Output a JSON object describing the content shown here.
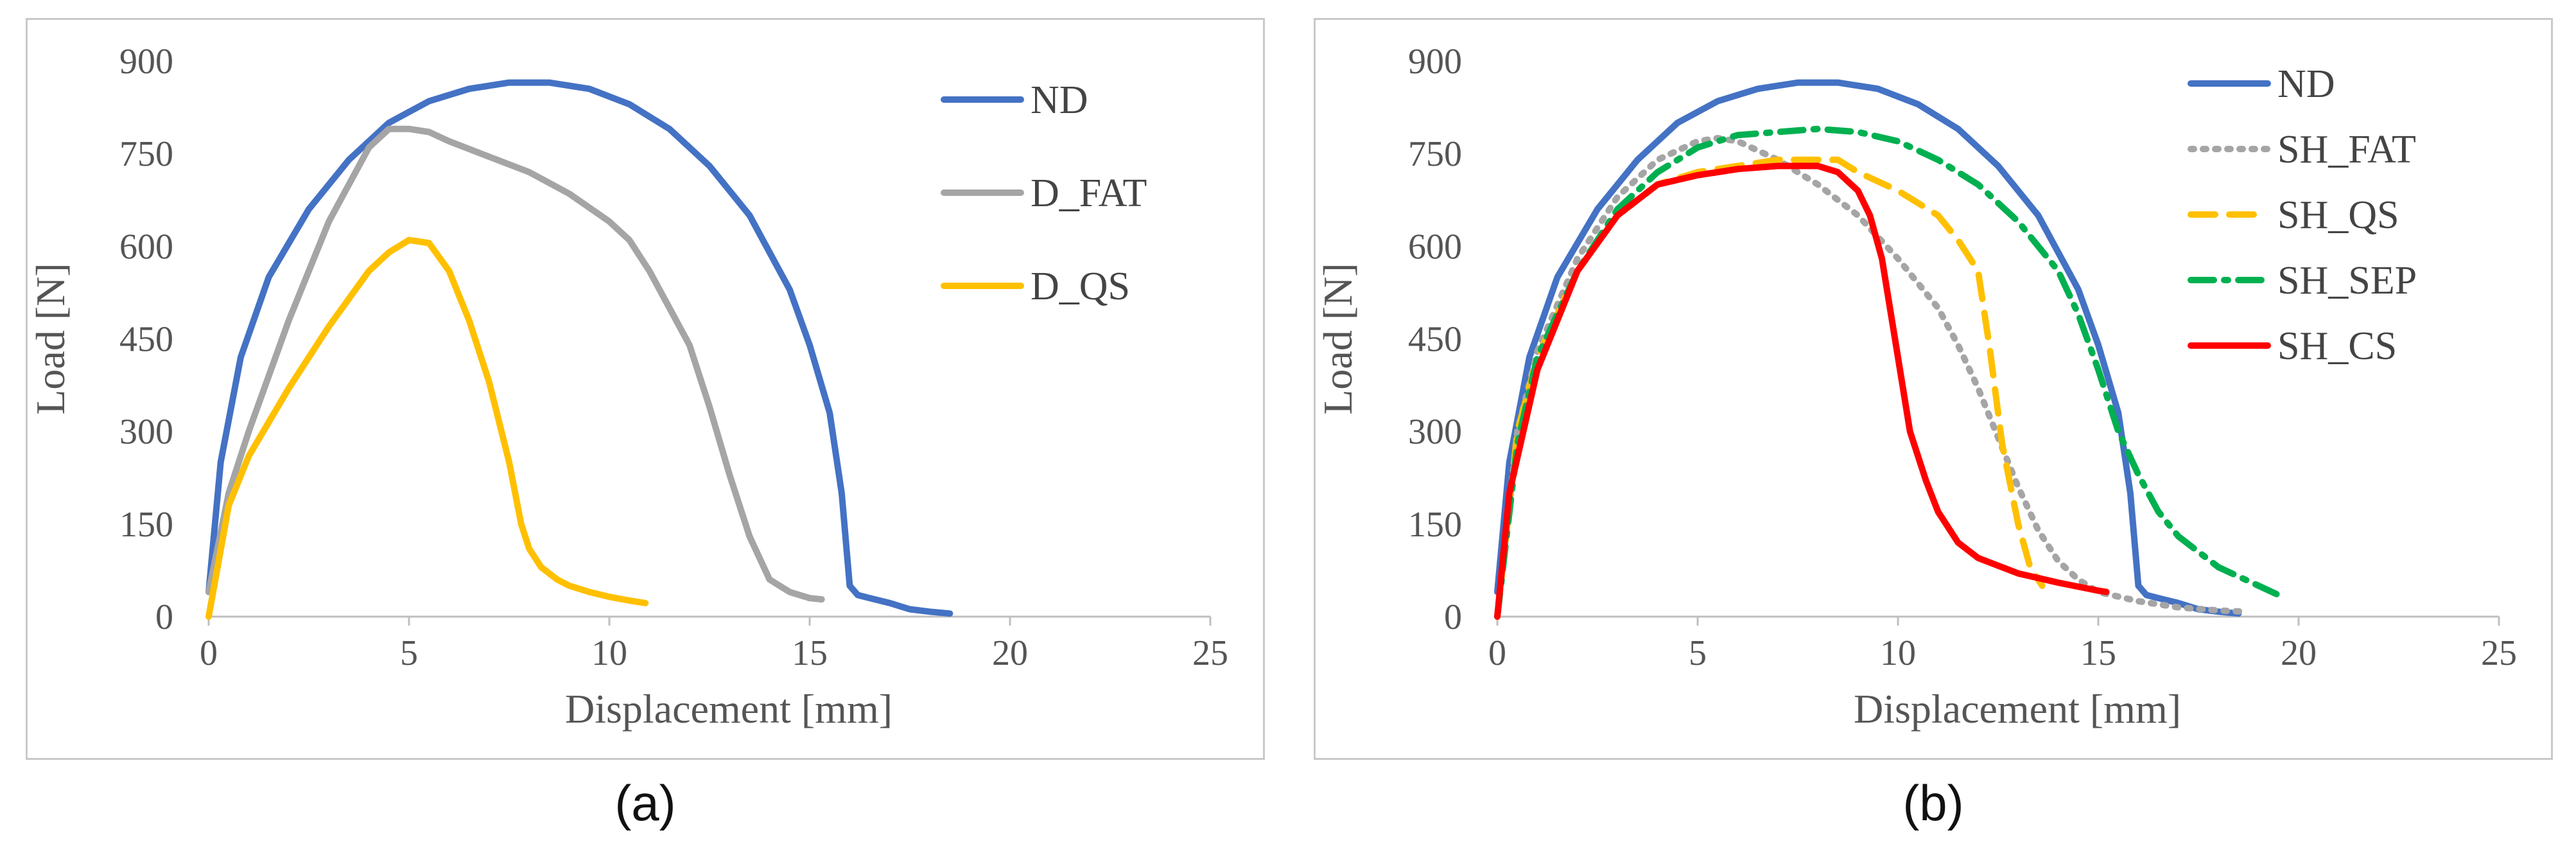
{
  "captions": [
    "(a)",
    "(b)"
  ],
  "colors": {
    "ND": "#4472C4",
    "D_FAT": "#A5A5A5",
    "D_QS": "#FFC000",
    "SH_FAT": "#A5A5A5",
    "SH_QS": "#FFC000",
    "SH_SEP": "#00B050",
    "SH_CS": "#FF0000"
  },
  "chart_data": [
    {
      "type": "line",
      "panel": "(a)",
      "xlabel": "Displacement  [mm]",
      "ylabel": "Load [N]",
      "xlim": [
        0,
        25
      ],
      "ylim": [
        0,
        900
      ],
      "xticks": [
        "0",
        "5",
        "10",
        "15",
        "20",
        "25"
      ],
      "yticks": [
        "0",
        "150",
        "300",
        "450",
        "600",
        "750",
        "900"
      ],
      "legend": [
        "ND",
        "D_FAT",
        "D_QS"
      ],
      "series": [
        {
          "name": "ND",
          "color": "#4472C4",
          "dash": "solid",
          "x": [
            0,
            0.3,
            0.8,
            1.5,
            2.5,
            3.5,
            4.5,
            5.5,
            6.5,
            7.5,
            8.5,
            9.5,
            10.5,
            11.5,
            12.5,
            13.5,
            14.5,
            15.0,
            15.5,
            15.8,
            16.0,
            16.2,
            16.5,
            17.0,
            17.5,
            18.0,
            18.5
          ],
          "y": [
            40,
            250,
            420,
            550,
            660,
            740,
            800,
            835,
            855,
            865,
            865,
            855,
            830,
            790,
            730,
            650,
            530,
            440,
            330,
            200,
            50,
            35,
            30,
            22,
            12,
            8,
            5
          ]
        },
        {
          "name": "D_FAT",
          "color": "#A5A5A5",
          "dash": "solid",
          "x": [
            0,
            0.5,
            1.0,
            2.0,
            3.0,
            4.0,
            4.5,
            5.0,
            5.5,
            6.0,
            7.0,
            8.0,
            9.0,
            10.0,
            10.5,
            11.0,
            11.5,
            12.0,
            12.5,
            13.0,
            13.5,
            14.0,
            14.5,
            15.0,
            15.3
          ],
          "y": [
            40,
            200,
            300,
            480,
            640,
            760,
            790,
            790,
            785,
            770,
            745,
            720,
            685,
            640,
            610,
            560,
            500,
            440,
            340,
            230,
            130,
            60,
            40,
            30,
            28
          ]
        },
        {
          "name": "D_QS",
          "color": "#FFC000",
          "dash": "solid",
          "x": [
            0,
            0.5,
            1.0,
            2.0,
            3.0,
            4.0,
            4.5,
            5.0,
            5.5,
            6.0,
            6.5,
            7.0,
            7.5,
            7.8,
            8.0,
            8.3,
            8.7,
            9.0,
            9.5,
            10.0,
            10.5,
            10.9
          ],
          "y": [
            0,
            180,
            260,
            370,
            470,
            560,
            590,
            610,
            605,
            560,
            480,
            380,
            250,
            150,
            110,
            80,
            60,
            50,
            40,
            32,
            26,
            22
          ]
        }
      ]
    },
    {
      "type": "line",
      "panel": "(b)",
      "xlabel": "Displacement  [mm]",
      "ylabel": "Load [N]",
      "xlim": [
        0,
        25
      ],
      "ylim": [
        0,
        900
      ],
      "xticks": [
        "0",
        "5",
        "10",
        "15",
        "20",
        "25"
      ],
      "yticks": [
        "0",
        "150",
        "300",
        "450",
        "600",
        "750",
        "900"
      ],
      "legend": [
        "ND",
        "SH_FAT",
        "SH_QS",
        "SH_SEP",
        "SH_CS"
      ],
      "series": [
        {
          "name": "ND",
          "color": "#4472C4",
          "dash": "solid",
          "x": [
            0,
            0.3,
            0.8,
            1.5,
            2.5,
            3.5,
            4.5,
            5.5,
            6.5,
            7.5,
            8.5,
            9.5,
            10.5,
            11.5,
            12.5,
            13.5,
            14.5,
            15.0,
            15.5,
            15.8,
            16.0,
            16.2,
            16.5,
            17.0,
            17.5,
            18.0,
            18.5
          ],
          "y": [
            40,
            250,
            420,
            550,
            660,
            740,
            800,
            835,
            855,
            865,
            865,
            855,
            830,
            790,
            730,
            650,
            530,
            440,
            330,
            200,
            50,
            35,
            30,
            22,
            12,
            8,
            5
          ]
        },
        {
          "name": "SH_FAT",
          "color": "#A5A5A5",
          "dash": "dot",
          "x": [
            0,
            0.5,
            1.0,
            2.0,
            3.0,
            4.0,
            5.0,
            5.5,
            6.0,
            7.0,
            8.0,
            9.0,
            10.0,
            11.0,
            11.5,
            12.0,
            12.5,
            13.0,
            13.5,
            14.0,
            14.5,
            15.0,
            16.0,
            17.0,
            18.0,
            18.7
          ],
          "y": [
            0,
            300,
            430,
            580,
            680,
            740,
            770,
            775,
            770,
            740,
            700,
            650,
            580,
            500,
            440,
            370,
            290,
            210,
            140,
            90,
            60,
            40,
            25,
            15,
            10,
            8
          ]
        },
        {
          "name": "SH_QS",
          "color": "#FFC000",
          "dash": "dash",
          "x": [
            0,
            0.5,
            1.0,
            2.0,
            3.0,
            4.0,
            5.0,
            6.0,
            7.0,
            8.0,
            8.5,
            9.0,
            10.0,
            11.0,
            11.5,
            12.0,
            12.3,
            12.6,
            13.0,
            13.3,
            13.6
          ],
          "y": [
            0,
            300,
            420,
            560,
            650,
            700,
            720,
            730,
            740,
            740,
            740,
            720,
            690,
            650,
            610,
            560,
            430,
            280,
            150,
            80,
            50
          ]
        },
        {
          "name": "SH_SEP",
          "color": "#00B050",
          "dash": "dashdot",
          "x": [
            0,
            0.5,
            1.0,
            2.0,
            3.0,
            4.0,
            5.0,
            6.0,
            7.0,
            8.0,
            9.0,
            10.0,
            11.0,
            12.0,
            13.0,
            14.0,
            14.5,
            15.0,
            15.5,
            16.0,
            16.5,
            17.0,
            18.0,
            19.0,
            19.5
          ],
          "y": [
            0,
            280,
            420,
            560,
            660,
            720,
            760,
            780,
            785,
            790,
            785,
            770,
            740,
            700,
            640,
            560,
            490,
            400,
            300,
            230,
            170,
            130,
            80,
            50,
            35
          ]
        },
        {
          "name": "SH_CS",
          "color": "#FF0000",
          "dash": "solid",
          "x": [
            0,
            0.3,
            1.0,
            2.0,
            3.0,
            4.0,
            5.0,
            6.0,
            7.0,
            8.0,
            8.5,
            9.0,
            9.3,
            9.6,
            10.0,
            10.3,
            10.7,
            11.0,
            11.5,
            12.0,
            13.0,
            14.0,
            15.0,
            15.2
          ],
          "y": [
            0,
            200,
            400,
            560,
            650,
            700,
            715,
            725,
            730,
            730,
            720,
            690,
            650,
            580,
            420,
            300,
            220,
            170,
            120,
            95,
            70,
            55,
            42,
            40
          ]
        }
      ]
    }
  ]
}
